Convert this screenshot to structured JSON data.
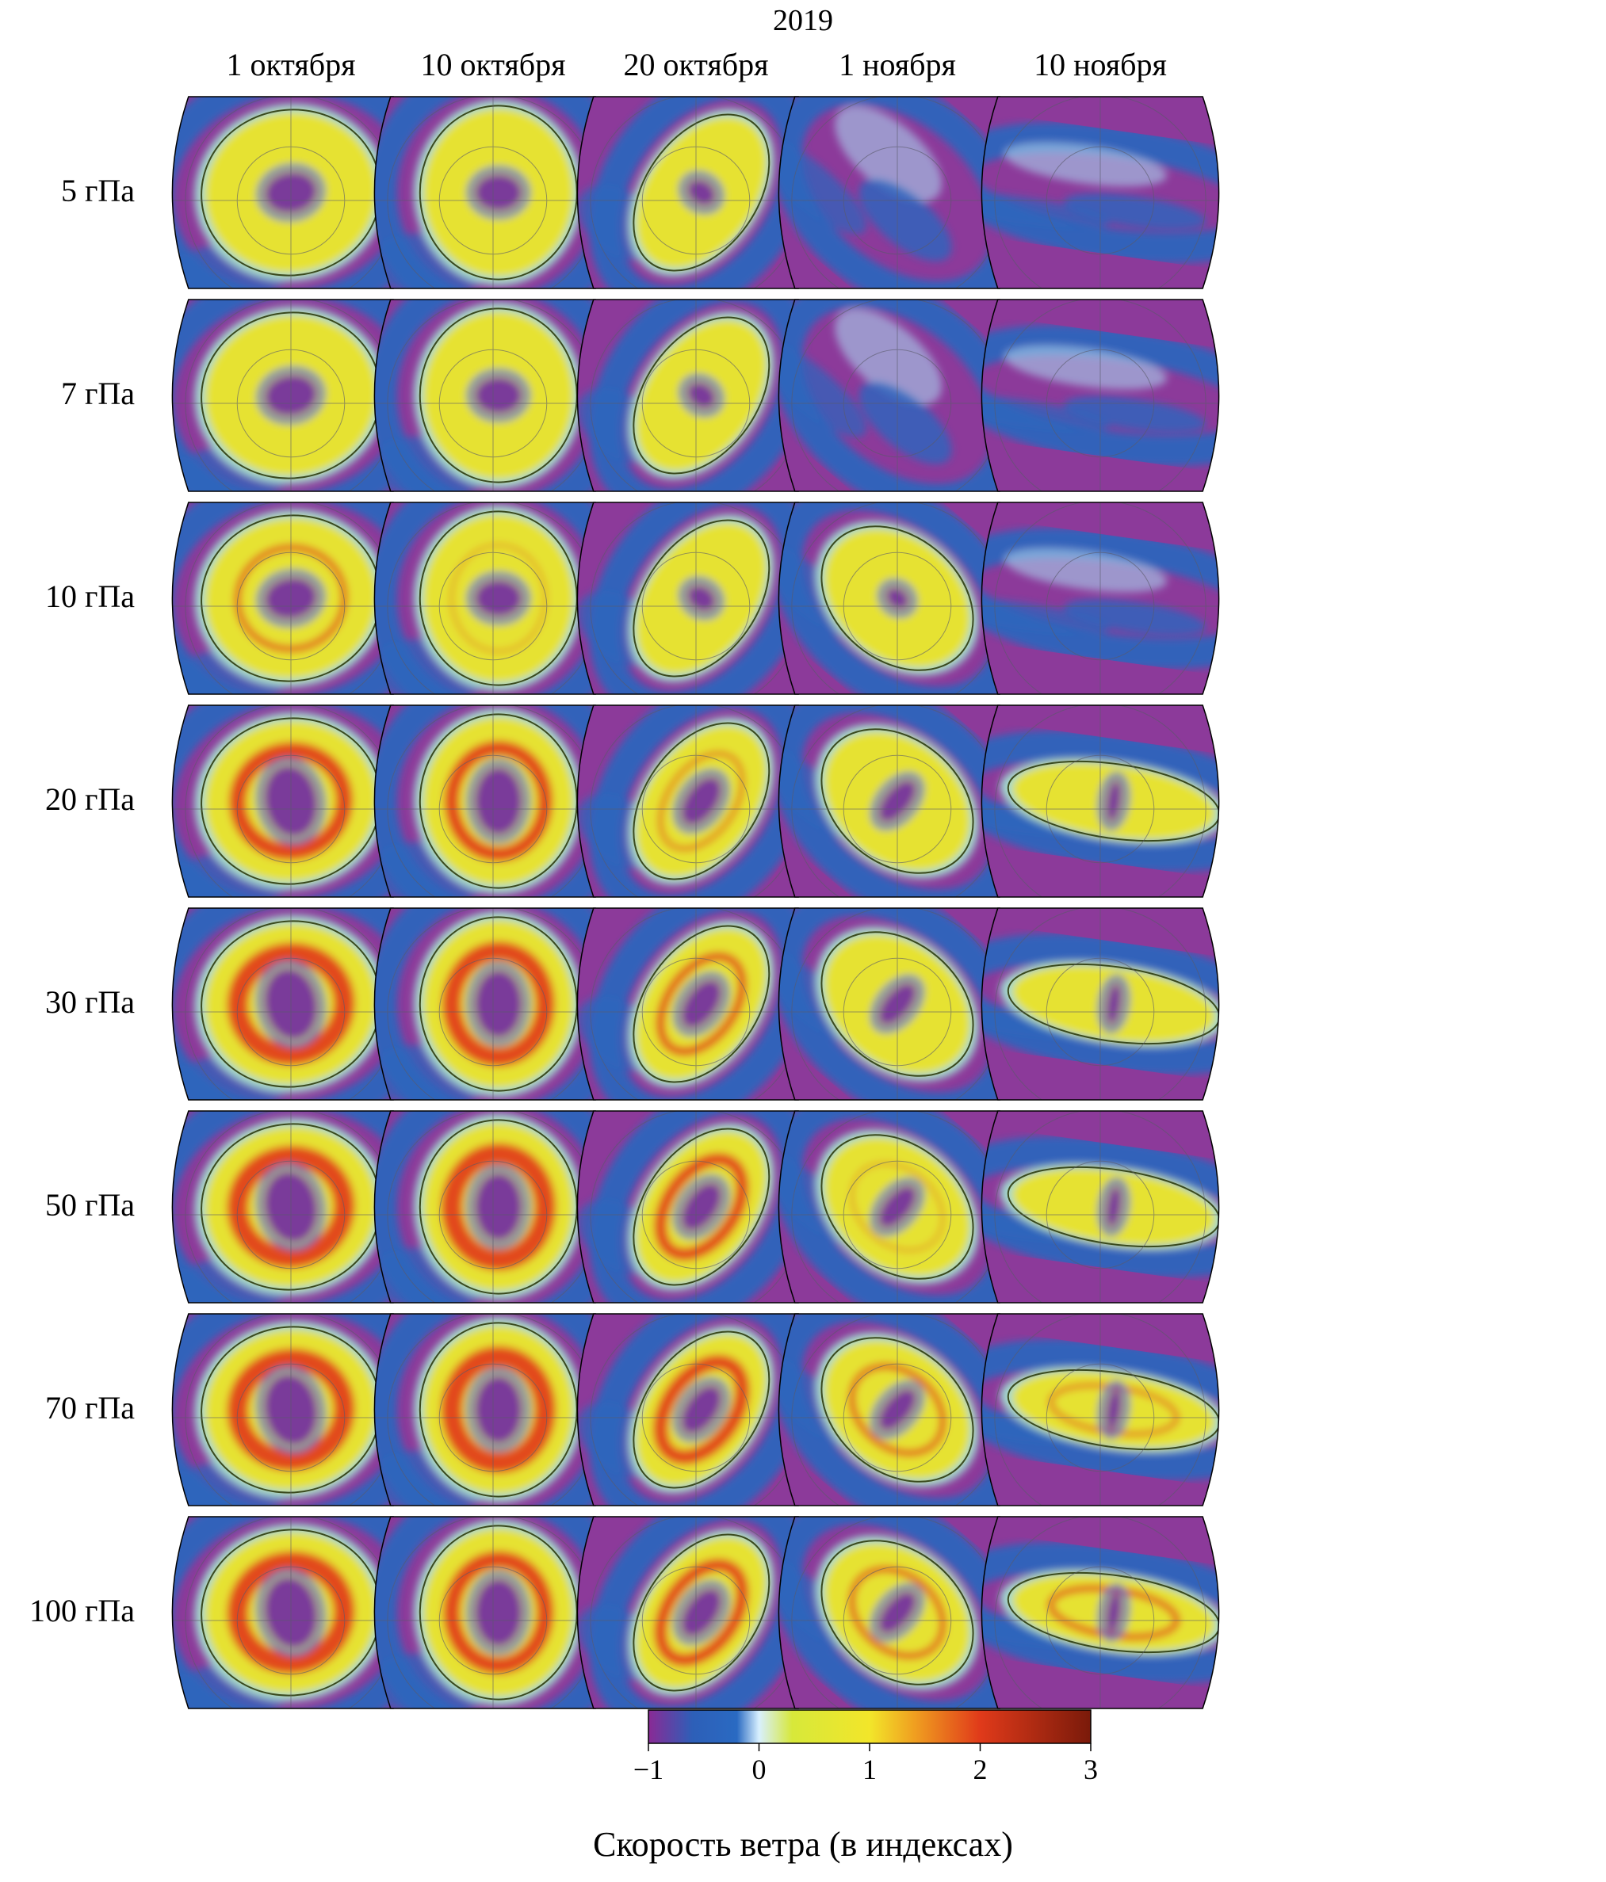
{
  "year": "2019",
  "columns": [
    "1 октября",
    "10 октября",
    "20 октября",
    "1 ноября",
    "10 ноября"
  ],
  "rows": [
    "5 гПа",
    "7 гПа",
    "10 гПа",
    "20 гПа",
    "30 гПа",
    "50 гПа",
    "70 гПа",
    "100 гПа"
  ],
  "colorbar": {
    "title": "Скорость ветра (в индексах)",
    "ticks": [
      "−1",
      "0",
      "1",
      "2",
      "3"
    ],
    "tick_values": [
      -1,
      0,
      1,
      2,
      3
    ],
    "range": [
      -1,
      3
    ],
    "stops": [
      {
        "v": -1.0,
        "c": "#8a2a95"
      },
      {
        "v": -0.6,
        "c": "#2d5fb8"
      },
      {
        "v": -0.2,
        "c": "#2a6ac2"
      },
      {
        "v": 0.0,
        "c": "#d8f0ff"
      },
      {
        "v": 0.3,
        "c": "#d7e83a"
      },
      {
        "v": 1.0,
        "c": "#f2e62a"
      },
      {
        "v": 1.4,
        "c": "#f0a020"
      },
      {
        "v": 2.0,
        "c": "#e03a1a"
      },
      {
        "v": 3.0,
        "c": "#7a1a0a"
      }
    ]
  },
  "colors": {
    "background": "#8c3a9a",
    "blue": "#2a66be",
    "yellow": "#e6e230",
    "red": "#e2401c",
    "contour": "#3a4a1e"
  }
}
